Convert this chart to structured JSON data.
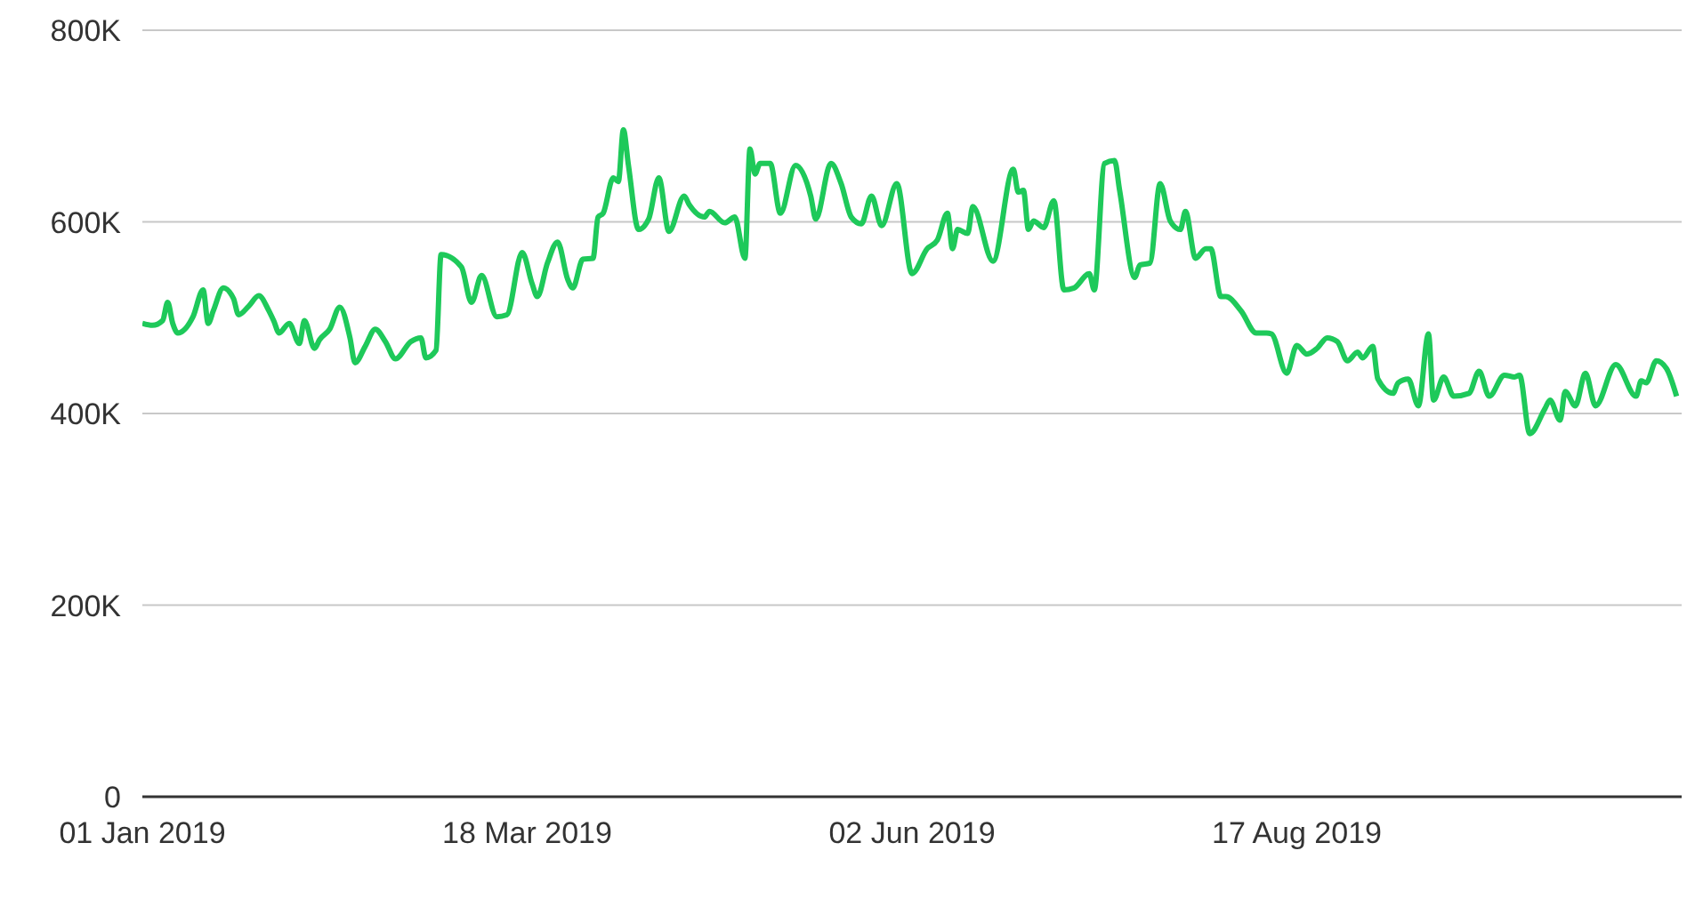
{
  "chart_data": {
    "type": "line",
    "x": [
      "2019-01-01",
      "2019-01-03",
      "2019-01-05",
      "2019-01-06",
      "2019-01-07",
      "2019-01-08",
      "2019-01-11",
      "2019-01-13",
      "2019-01-14",
      "2019-01-15",
      "2019-01-17",
      "2019-01-19",
      "2019-01-20",
      "2019-01-22",
      "2019-01-24",
      "2019-01-26",
      "2019-01-27",
      "2019-01-28",
      "2019-01-30",
      "2019-02-01",
      "2019-02-02",
      "2019-02-04",
      "2019-02-05",
      "2019-02-07",
      "2019-02-09",
      "2019-02-11",
      "2019-02-12",
      "2019-02-14",
      "2019-02-16",
      "2019-02-18",
      "2019-02-20",
      "2019-02-23",
      "2019-02-25",
      "2019-02-26",
      "2019-02-28",
      "2019-03-01",
      "2019-03-05",
      "2019-03-07",
      "2019-03-09",
      "2019-03-12",
      "2019-03-14",
      "2019-03-17",
      "2019-03-19",
      "2019-03-20",
      "2019-03-22",
      "2019-03-24",
      "2019-03-26",
      "2019-03-27",
      "2019-03-29",
      "2019-03-31",
      "2019-04-01",
      "2019-04-02",
      "2019-04-04",
      "2019-04-05",
      "2019-04-06",
      "2019-04-07",
      "2019-04-09",
      "2019-04-11",
      "2019-04-13",
      "2019-04-15",
      "2019-04-18",
      "2019-04-19",
      "2019-04-22",
      "2019-04-23",
      "2019-04-26",
      "2019-04-28",
      "2019-04-30",
      "2019-05-01",
      "2019-05-02",
      "2019-05-03",
      "2019-05-05",
      "2019-05-07",
      "2019-05-10",
      "2019-05-13",
      "2019-05-14",
      "2019-05-17",
      "2019-05-19",
      "2019-05-21",
      "2019-05-23",
      "2019-05-25",
      "2019-05-27",
      "2019-05-30",
      "2019-06-02",
      "2019-06-05",
      "2019-06-07",
      "2019-06-09",
      "2019-06-10",
      "2019-06-11",
      "2019-06-13",
      "2019-06-14",
      "2019-06-18",
      "2019-06-22",
      "2019-06-23",
      "2019-06-24",
      "2019-06-25",
      "2019-06-26",
      "2019-06-28",
      "2019-06-30",
      "2019-07-02",
      "2019-07-04",
      "2019-07-07",
      "2019-07-08",
      "2019-07-10",
      "2019-07-12",
      "2019-07-13",
      "2019-07-16",
      "2019-07-17",
      "2019-07-19",
      "2019-07-21",
      "2019-07-23",
      "2019-07-25",
      "2019-07-26",
      "2019-07-28",
      "2019-07-30",
      "2019-07-31",
      "2019-08-02",
      "2019-08-03",
      "2019-08-06",
      "2019-08-09",
      "2019-08-11",
      "2019-08-12",
      "2019-08-15",
      "2019-08-17",
      "2019-08-19",
      "2019-08-21",
      "2019-08-23",
      "2019-08-25",
      "2019-08-27",
      "2019-08-29",
      "2019-08-30",
      "2019-09-01",
      "2019-09-02",
      "2019-09-05",
      "2019-09-06",
      "2019-09-08",
      "2019-09-10",
      "2019-09-12",
      "2019-09-13",
      "2019-09-15",
      "2019-09-17",
      "2019-09-20",
      "2019-09-22",
      "2019-09-24",
      "2019-09-27",
      "2019-09-29",
      "2019-09-30",
      "2019-10-02",
      "2019-10-05",
      "2019-10-06",
      "2019-10-08",
      "2019-10-09",
      "2019-10-11",
      "2019-10-13",
      "2019-10-15",
      "2019-10-19",
      "2019-10-23",
      "2019-10-24",
      "2019-10-25",
      "2019-10-27",
      "2019-10-29",
      "2019-10-31"
    ],
    "series": [
      {
        "color": "#1ec95a",
        "values": [
          494000,
          492000,
          497000,
          516000,
          494000,
          484000,
          501000,
          529000,
          494000,
          507000,
          531000,
          520000,
          503000,
          512000,
          523000,
          507000,
          496000,
          484000,
          494000,
          473000,
          497000,
          468000,
          477000,
          488000,
          511000,
          479000,
          453000,
          470000,
          488000,
          475000,
          457000,
          475000,
          479000,
          458000,
          466000,
          566000,
          553000,
          516000,
          544000,
          501000,
          503000,
          568000,
          535000,
          522000,
          557000,
          579000,
          540000,
          531000,
          561000,
          562000,
          605000,
          609000,
          646000,
          642000,
          696000,
          659000,
          592000,
          603000,
          646000,
          590000,
          627000,
          618000,
          605000,
          611000,
          599000,
          605000,
          562000,
          676000,
          650000,
          661000,
          661000,
          609000,
          659000,
          627000,
          603000,
          661000,
          640000,
          605000,
          598000,
          627000,
          596000,
          640000,
          546000,
          572000,
          581000,
          609000,
          572000,
          592000,
          588000,
          616000,
          559000,
          655000,
          631000,
          633000,
          592000,
          601000,
          594000,
          622000,
          529000,
          531000,
          546000,
          529000,
          661000,
          664000,
          633000,
          542000,
          555000,
          557000,
          640000,
          601000,
          592000,
          611000,
          562000,
          572000,
          572000,
          522000,
          522000,
          507000,
          484000,
          484000,
          483000,
          442000,
          471000,
          462000,
          468000,
          479000,
          475000,
          455000,
          464000,
          458000,
          470000,
          436000,
          421000,
          432000,
          436000,
          408000,
          483000,
          414000,
          438000,
          418000,
          421000,
          444000,
          418000,
          440000,
          438000,
          440000,
          379000,
          405000,
          414000,
          393000,
          423000,
          408000,
          442000,
          408000,
          451000,
          418000,
          434000,
          432000,
          455000,
          447000,
          418000
        ]
      }
    ],
    "xlim": [
      "2019-01-01",
      "2019-11-01"
    ],
    "xticks": [
      {
        "value": "2019-01-01",
        "label": "01 Jan 2019"
      },
      {
        "value": "2019-03-18",
        "label": "18 Mar 2019"
      },
      {
        "value": "2019-06-02",
        "label": "02 Jun 2019"
      },
      {
        "value": "2019-08-17",
        "label": "17 Aug 2019"
      }
    ],
    "ylim": [
      0,
      800000
    ],
    "yticks": [
      {
        "value": 0,
        "label": "0"
      },
      {
        "value": 200000,
        "label": "200K"
      },
      {
        "value": 400000,
        "label": "400K"
      },
      {
        "value": 600000,
        "label": "600K"
      },
      {
        "value": 800000,
        "label": "800K"
      }
    ],
    "grid": "y",
    "legend": false,
    "marker": "none",
    "line_style": "solid"
  }
}
